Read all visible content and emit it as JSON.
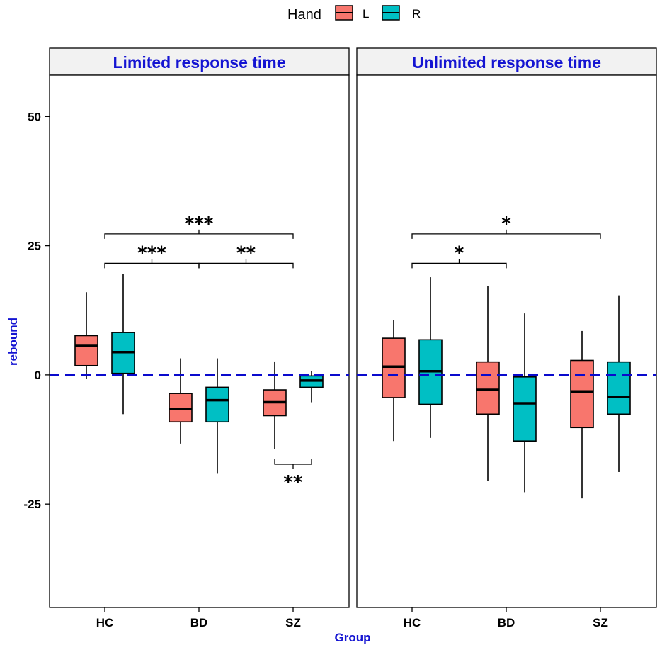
{
  "chart_data": {
    "type": "box",
    "legend": {
      "title": "Hand",
      "entries": [
        {
          "label": "L",
          "color": "#F8766D"
        },
        {
          "label": "R",
          "color": "#00BFC4"
        }
      ],
      "position": "top"
    },
    "xlabel": "Group",
    "ylabel": "rebound",
    "label_color": "#1414D2",
    "categories": [
      "HC",
      "BD",
      "SZ"
    ],
    "ylim": [
      -45,
      58
    ],
    "yticks": [
      {
        "value": 50,
        "label": "50"
      },
      {
        "value": 25,
        "label": "25"
      },
      {
        "value": 0,
        "label": "0"
      },
      {
        "value": -25,
        "label": "-25"
      }
    ],
    "reference_line": {
      "y": 0,
      "color": "#0A0ACD",
      "style": "dashed"
    },
    "panels": [
      {
        "title": "Limited response time",
        "boxes": [
          {
            "group": "HC",
            "hand": "L",
            "min": -0.8,
            "q1": 1.8,
            "median": 5.6,
            "q3": 7.6,
            "max": 16
          },
          {
            "group": "HC",
            "hand": "R",
            "min": -7.6,
            "q1": 0.3,
            "median": 4.4,
            "q3": 8.2,
            "max": 19.5
          },
          {
            "group": "BD",
            "hand": "L",
            "min": -13.3,
            "q1": -9.1,
            "median": -6.6,
            "q3": -3.6,
            "max": 3.2
          },
          {
            "group": "BD",
            "hand": "R",
            "min": -19,
            "q1": -9.1,
            "median": -4.9,
            "q3": -2.4,
            "max": 3.2
          },
          {
            "group": "SZ",
            "hand": "L",
            "min": -14.4,
            "q1": -7.9,
            "median": -5.3,
            "q3": -2.9,
            "max": 2.6
          },
          {
            "group": "SZ",
            "hand": "R",
            "min": -5.3,
            "q1": -2.4,
            "median": -1.1,
            "q3": -0.2,
            "max": 0.8
          }
        ],
        "significance": [
          {
            "from": "HC",
            "to": "SZ",
            "label": "***"
          },
          {
            "from": "HC",
            "to": "BD",
            "label": "***"
          },
          {
            "from": "BD",
            "to": "SZ",
            "label": "**"
          },
          {
            "from": "SZ L",
            "to": "SZ R",
            "label": "**"
          }
        ]
      },
      {
        "title": "Unlimited response time",
        "boxes": [
          {
            "group": "HC",
            "hand": "L",
            "min": -12.8,
            "q1": -4.4,
            "median": 1.6,
            "q3": 7.1,
            "max": 10.6
          },
          {
            "group": "HC",
            "hand": "R",
            "min": -12.2,
            "q1": -5.7,
            "median": 0.7,
            "q3": 6.8,
            "max": 18.9
          },
          {
            "group": "BD",
            "hand": "L",
            "min": -20.5,
            "q1": -7.6,
            "median": -2.9,
            "q3": 2.5,
            "max": 17.2
          },
          {
            "group": "BD",
            "hand": "R",
            "min": -22.7,
            "q1": -12.8,
            "median": -5.5,
            "q3": -0.4,
            "max": 11.9
          },
          {
            "group": "SZ",
            "hand": "L",
            "min": -23.9,
            "q1": -10.2,
            "median": -3.2,
            "q3": 2.8,
            "max": 8.5
          },
          {
            "group": "SZ",
            "hand": "R",
            "min": -18.8,
            "q1": -7.6,
            "median": -4.3,
            "q3": 2.5,
            "max": 15.4
          }
        ],
        "significance": [
          {
            "from": "HC",
            "to": "SZ",
            "label": "*"
          },
          {
            "from": "HC",
            "to": "BD",
            "label": "*"
          }
        ]
      }
    ]
  }
}
